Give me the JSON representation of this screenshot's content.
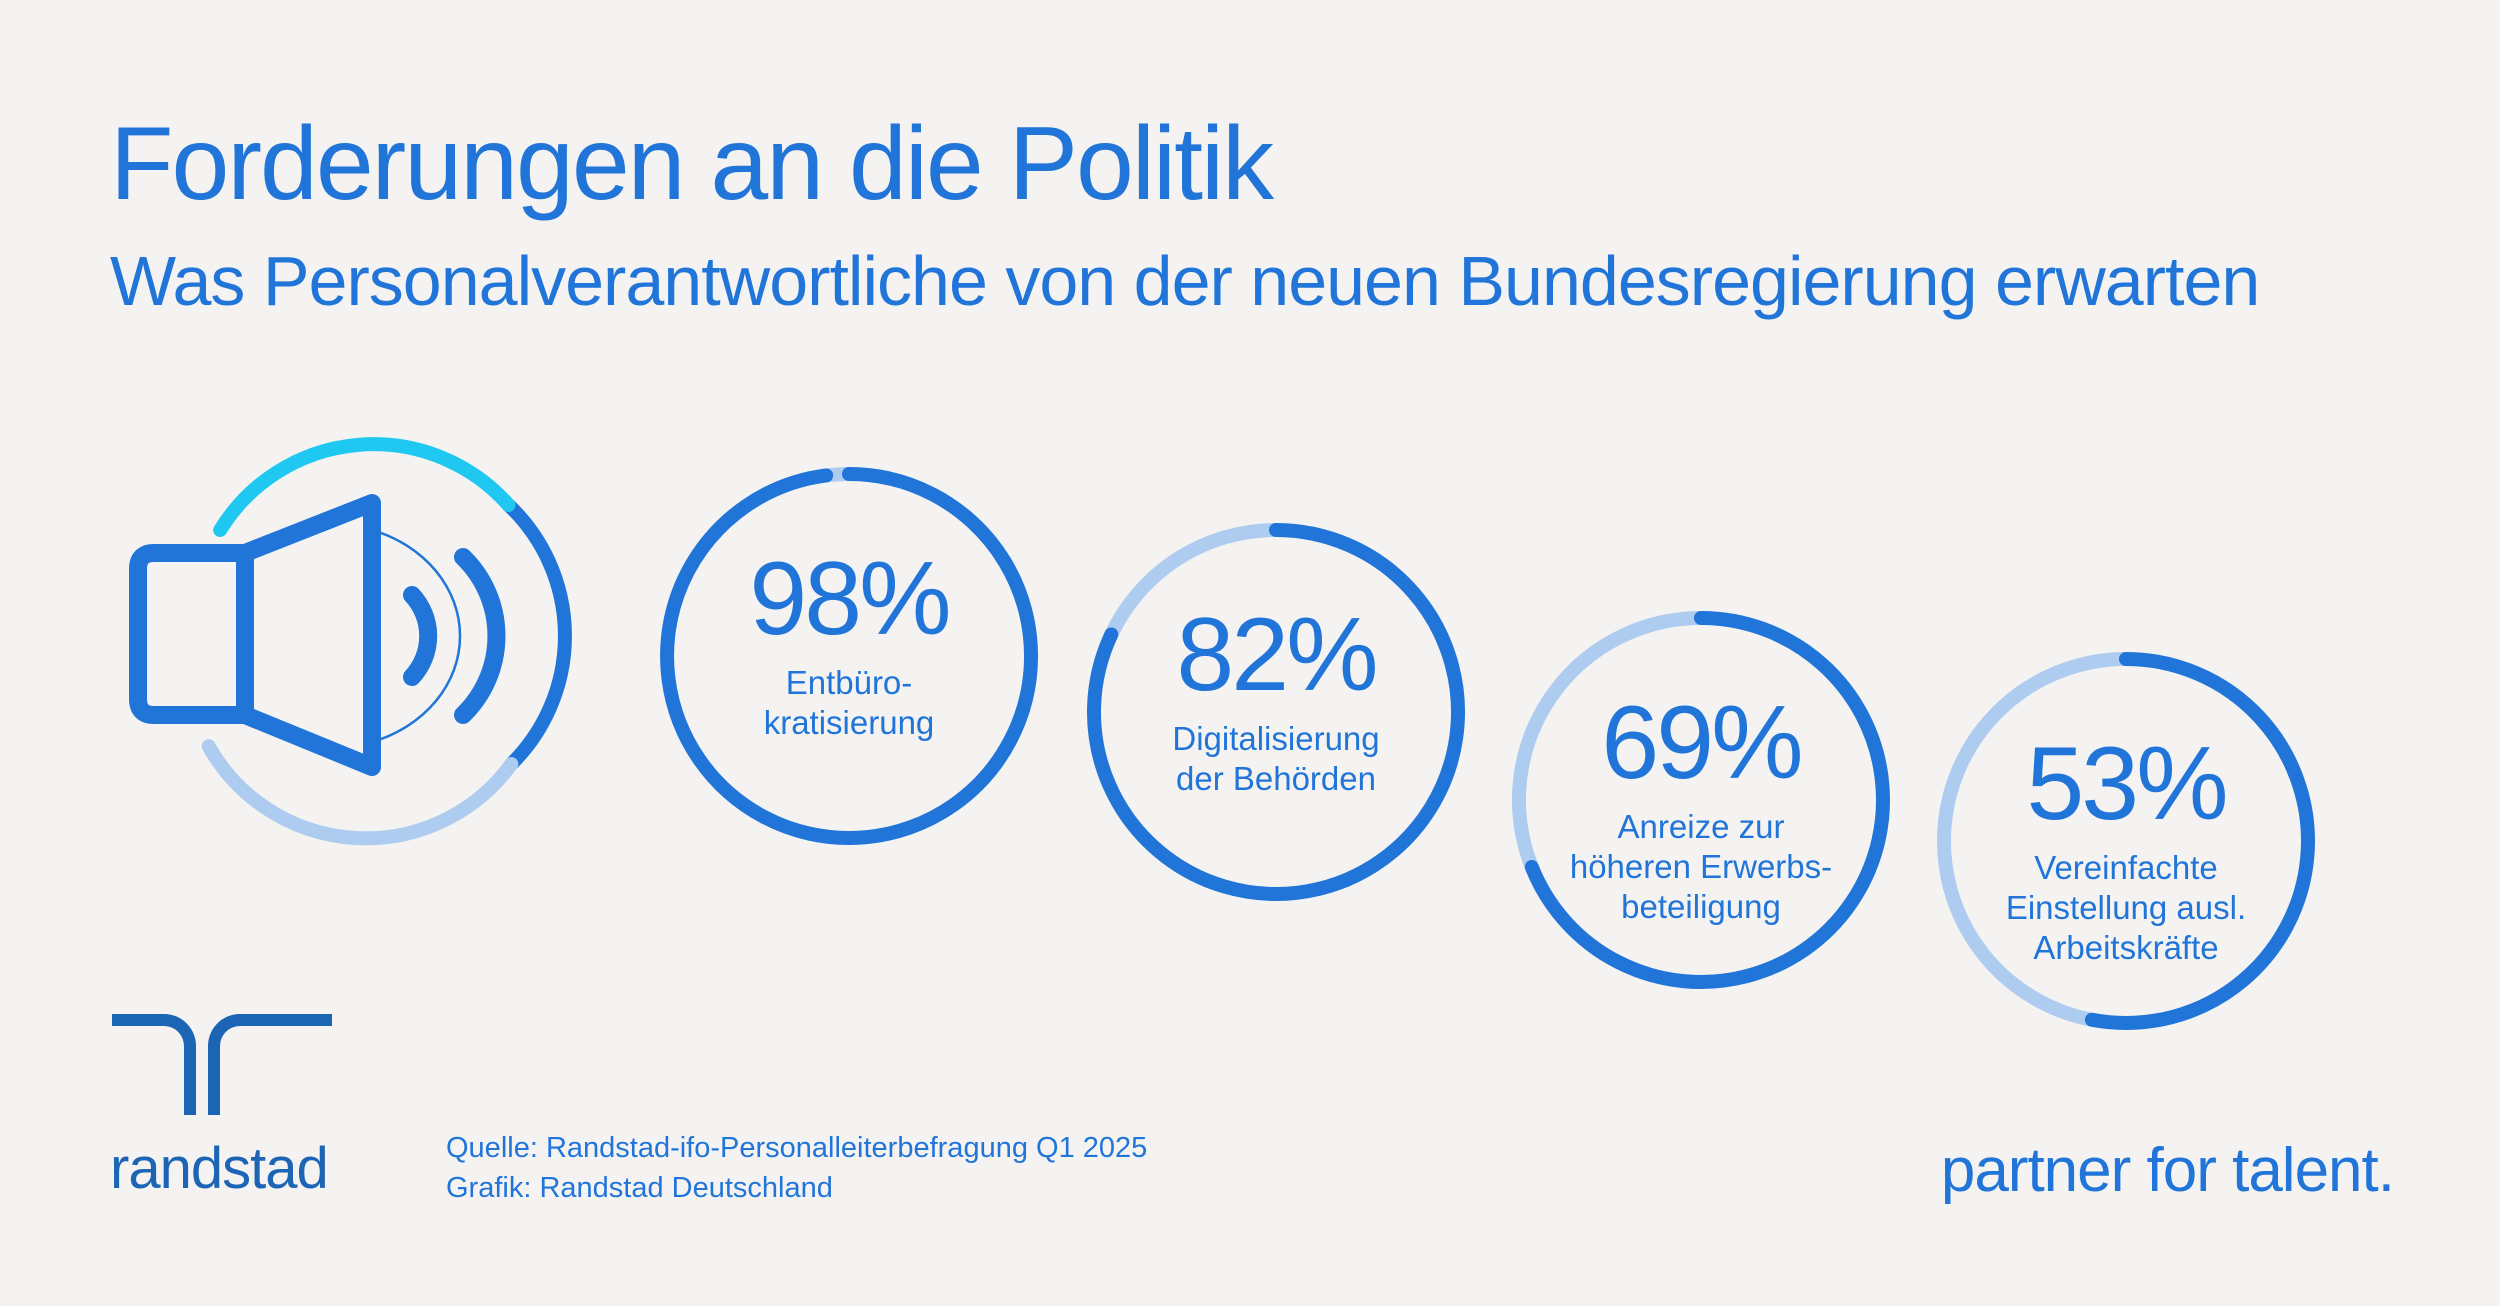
{
  "header": {
    "title": "Forderungen an die Politik",
    "subtitle": "Was Personalverantwortliche von der neuen Bundesregierung erwarten"
  },
  "chart_data": {
    "type": "donut",
    "title": "Forderungen an die Politik",
    "subtitle": "Was Personalverantwortliche von der neuen Bundesregierung erwarten",
    "unit": "%",
    "categories": [
      "Entbürokratisierung",
      "Digitalisierung der Behörden",
      "Anreize zur höheren Erwerbsbeteiligung",
      "Vereinfachte Einstellung ausl. Arbeitskräfte"
    ],
    "values": [
      98,
      82,
      69,
      53
    ],
    "items": [
      {
        "value": 98,
        "value_label": "98%",
        "label_lines": [
          "Entbüro-",
          "kratisierung"
        ]
      },
      {
        "value": 82,
        "value_label": "82%",
        "label_lines": [
          "Digitalisierung",
          "der Behörden"
        ]
      },
      {
        "value": 69,
        "value_label": "69%",
        "label_lines": [
          "Anreize zur",
          "höheren Erwerbs-",
          "beteiligung"
        ]
      },
      {
        "value": 53,
        "value_label": "53%",
        "label_lines": [
          "Vereinfachte",
          "Einstellung ausl.",
          "Arbeitskräfte"
        ]
      }
    ]
  },
  "colors": {
    "accent": "#2175d9",
    "track": "#aecbf0",
    "cyan": "#1fc8f0",
    "background": "#f4f3f1"
  },
  "icons": {
    "megaphone": "speaker-icon",
    "logo": "randstad-logo-icon"
  },
  "footer": {
    "source_line1": "Quelle: Randstad-ifo-Personalleiterbefragung Q1 2025",
    "source_line2": "Grafik: Randstad Deutschland",
    "brand": "randstad",
    "tagline": "partner for talent."
  }
}
